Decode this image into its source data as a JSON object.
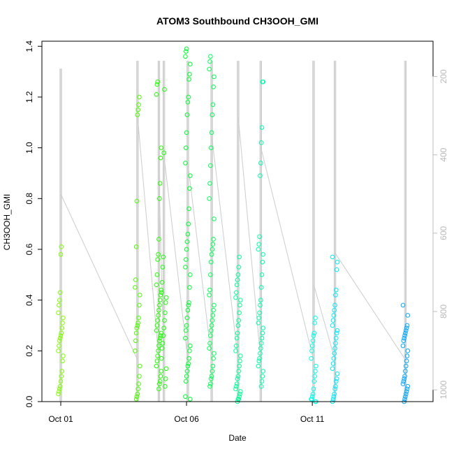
{
  "chart_data": {
    "type": "scatter",
    "title": "ATOM3 Southbound CH3OOH_GMI",
    "xlabel": "Date",
    "ylabel": "CH3OOH_GMI",
    "x_ticks": [
      "Oct 01",
      "Oct 06",
      "Oct 11"
    ],
    "y_ticks": [
      "0.0",
      "0.2",
      "0.4",
      "0.6",
      "0.8",
      "1.0",
      "1.2",
      "1.4"
    ],
    "ylim": [
      0,
      1.42
    ],
    "xlim_days_from_oct01": [
      -0.75,
      14.8
    ],
    "right_axis": {
      "label": "",
      "ticks": [
        "200",
        "400",
        "600",
        "800",
        "1000"
      ],
      "direction": "reversed",
      "range": [
        110,
        1030
      ],
      "color": "#bdbdbd"
    },
    "point_style": "open-circle",
    "line_color": "#cccccc",
    "grid": false,
    "legend": "none",
    "series": [
      {
        "day": 0.0,
        "color": "#80ff00",
        "values": [
          0.03,
          0.04,
          0.05,
          0.06,
          0.08,
          0.1,
          0.12,
          0.16,
          0.18,
          0.2,
          0.22,
          0.24,
          0.25,
          0.26,
          0.27,
          0.29,
          0.31,
          0.33,
          0.35,
          0.38,
          0.4,
          0.43,
          0.58,
          0.61
        ]
      },
      {
        "day": 3.05,
        "color": "#4cff00",
        "values": [
          0.01,
          0.02,
          0.03,
          0.05,
          0.07,
          0.1,
          0.14,
          0.2,
          0.24,
          0.27,
          0.29,
          0.3,
          0.31,
          0.33,
          0.38,
          0.42,
          0.45,
          0.48,
          0.61,
          0.79,
          1.13,
          1.15,
          1.17,
          1.2
        ]
      },
      {
        "day": 3.9,
        "color": "#22ff00",
        "values": [
          0.05,
          0.07,
          0.08,
          0.1,
          0.12,
          0.14,
          0.16,
          0.18,
          0.2,
          0.22,
          0.24,
          0.25,
          0.26,
          0.27,
          0.28,
          0.3,
          0.32,
          0.34,
          0.36,
          0.38,
          0.4,
          0.42,
          0.44,
          0.46,
          0.5,
          0.56,
          0.58,
          0.64,
          0.8,
          0.86,
          0.96,
          1.0,
          1.21,
          1.25,
          1.26
        ]
      },
      {
        "day": 4.1,
        "color": "#1aff0a",
        "values": [
          0.06,
          0.09,
          0.13,
          0.17,
          0.21,
          0.23,
          0.26,
          0.29,
          0.32,
          0.35,
          0.39,
          0.41,
          0.43,
          0.47,
          0.53,
          0.57,
          0.98,
          1.23
        ]
      },
      {
        "day": 5.05,
        "color": "#00ff30",
        "values": [
          0.01,
          0.02,
          0.08,
          0.1,
          0.12,
          0.14,
          0.15,
          0.17,
          0.2,
          0.22,
          0.25,
          0.28,
          0.3,
          0.33,
          0.36,
          0.38,
          0.39,
          0.45,
          0.5,
          0.53,
          0.56,
          0.6,
          0.63,
          0.66,
          0.7,
          0.76,
          0.84,
          0.89,
          0.94,
          1.0,
          1.06,
          1.13,
          1.18,
          1.2,
          1.27,
          1.29,
          1.33,
          1.36,
          1.38,
          1.39
        ]
      },
      {
        "day": 6.0,
        "color": "#00ff55",
        "values": [
          0.06,
          0.07,
          0.09,
          0.1,
          0.12,
          0.14,
          0.17,
          0.19,
          0.21,
          0.23,
          0.26,
          0.28,
          0.3,
          0.32,
          0.34,
          0.36,
          0.38,
          0.42,
          0.44,
          0.5,
          0.55,
          0.58,
          0.6,
          0.62,
          0.64,
          0.72,
          0.8,
          0.86,
          0.93,
          1.0,
          1.06,
          1.13,
          1.17,
          1.24,
          1.28,
          1.31,
          1.34,
          1.36
        ]
      },
      {
        "day": 7.05,
        "color": "#00ff99",
        "values": [
          0.0,
          0.01,
          0.01,
          0.02,
          0.03,
          0.04,
          0.05,
          0.06,
          0.07,
          0.09,
          0.1,
          0.12,
          0.14,
          0.16,
          0.18,
          0.2,
          0.22,
          0.25,
          0.27,
          0.3,
          0.32,
          0.35,
          0.38,
          0.4,
          0.41,
          0.43,
          0.46,
          0.48,
          0.5,
          0.53,
          0.57
        ]
      },
      {
        "day": 7.95,
        "color": "#00ffaa",
        "values": [
          0.06,
          0.08,
          0.1,
          0.12,
          0.14,
          0.16,
          0.17,
          0.19,
          0.21,
          0.23,
          0.25,
          0.27,
          0.29,
          0.31,
          0.33,
          0.35,
          0.38,
          0.4,
          0.45,
          0.5,
          0.55,
          0.58,
          0.6,
          0.62,
          0.65,
          0.89,
          0.94,
          1.02,
          1.08,
          1.26,
          1.26
        ]
      },
      {
        "day": 10.05,
        "color": "#00ffee",
        "values": [
          0.0,
          0.0,
          0.01,
          0.01,
          0.02,
          0.03,
          0.05,
          0.08,
          0.1,
          0.12,
          0.14,
          0.17,
          0.2,
          0.22,
          0.24,
          0.26,
          0.27,
          0.31,
          0.33
        ]
      },
      {
        "day": 10.9,
        "color": "#00eaff",
        "values": [
          0.0,
          0.01,
          0.02,
          0.03,
          0.05,
          0.06,
          0.08,
          0.09,
          0.11,
          0.13,
          0.15,
          0.17,
          0.19,
          0.21,
          0.23,
          0.25,
          0.27,
          0.28,
          0.3,
          0.32,
          0.34,
          0.36,
          0.38,
          0.42,
          0.44,
          0.52,
          0.55,
          0.57
        ]
      },
      {
        "day": 13.7,
        "color": "#00a8ff",
        "values": [
          0.0,
          0.01,
          0.02,
          0.03,
          0.04,
          0.05,
          0.06,
          0.07,
          0.08,
          0.09,
          0.1,
          0.12,
          0.14,
          0.16,
          0.18,
          0.2,
          0.22,
          0.24,
          0.25,
          0.26,
          0.27,
          0.28,
          0.29,
          0.3,
          0.34,
          0.38
        ]
      }
    ],
    "profiles": [
      {
        "day": 0.0,
        "levels": [
          1030,
          500,
          180
        ]
      },
      {
        "day": 3.05,
        "levels": [
          1030,
          300,
          160
        ]
      },
      {
        "day": 3.9,
        "levels": [
          1030,
          450,
          160
        ]
      },
      {
        "day": 4.1,
        "levels": [
          1030,
          400,
          160
        ]
      },
      {
        "day": 5.05,
        "levels": [
          1030,
          420,
          160
        ]
      },
      {
        "day": 6.0,
        "levels": [
          1030,
          350,
          160
        ]
      },
      {
        "day": 7.05,
        "levels": [
          1030,
          300,
          160
        ]
      },
      {
        "day": 7.95,
        "levels": [
          1030,
          380,
          160
        ]
      },
      {
        "day": 10.05,
        "levels": [
          1030,
          730,
          160
        ]
      },
      {
        "day": 10.9,
        "levels": [
          1030,
          650,
          160
        ]
      },
      {
        "day": 13.7,
        "levels": [
          1030,
          700,
          160
        ]
      }
    ]
  }
}
